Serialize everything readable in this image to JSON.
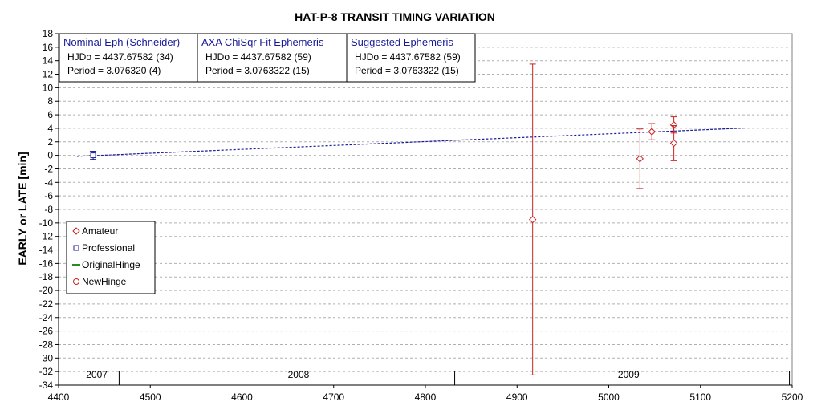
{
  "chart_data": {
    "type": "scatter",
    "title": "HAT-P-8 TRANSIT TIMING VARIATION",
    "xlabel": "",
    "ylabel": "EARLY or LATE [min]",
    "xlim": [
      4400,
      5200
    ],
    "ylim": [
      -34,
      18
    ],
    "x_ticks": [
      "4400",
      "4500",
      "4600",
      "4700",
      "4800",
      "4900",
      "5000",
      "5100",
      "5200"
    ],
    "y_ticks": [
      "18",
      "16",
      "14",
      "12",
      "10",
      "8",
      "6",
      "4",
      "2",
      "0",
      "-2",
      "-4",
      "-6",
      "-8",
      "-10",
      "-12",
      "-14",
      "-16",
      "-18",
      "-20",
      "-22",
      "-24",
      "-26",
      "-28",
      "-30",
      "-32",
      "-34"
    ],
    "grid": "horizontal dashed",
    "legend_placement": "lower-left",
    "years": [
      {
        "label": "2007",
        "x": 4430
      },
      {
        "label": "2008",
        "x": 4650
      },
      {
        "label": "2009",
        "x": 5010
      }
    ],
    "year_dividers": [
      4466,
      4832,
      5197
    ],
    "series": [
      {
        "name": "Amateur",
        "marker": "diamond",
        "color": "#cc2222",
        "points": [
          {
            "x": 4917,
            "y": -9.5,
            "err": 23
          },
          {
            "x": 5034,
            "y": -0.5,
            "err": 4.4
          },
          {
            "x": 5047,
            "y": 3.5,
            "err": 1.2
          },
          {
            "x": 5071,
            "y": 4.5,
            "err": 1.2
          },
          {
            "x": 5071,
            "y": 1.8,
            "err": 2.6
          }
        ]
      },
      {
        "name": "Professional",
        "marker": "square",
        "color": "#1a1a99",
        "points": [
          {
            "x": 4437.7,
            "y": 0,
            "err": 0.6
          }
        ]
      },
      {
        "name": "OriginalHinge",
        "marker": "line",
        "color": "#2a8a2a",
        "points": []
      },
      {
        "name": "NewHinge",
        "marker": "circle",
        "color": "#cc2222",
        "points": []
      }
    ],
    "fit_line": {
      "color": "#1a1a99",
      "x": [
        4420,
        5150
      ],
      "y": [
        -0.15,
        4.05
      ]
    },
    "info_boxes": [
      {
        "heading": "Nominal Eph (Schneider)",
        "line1": "HJDo = 4437.67582 (34)",
        "line2": "Period = 3.076320 (4)"
      },
      {
        "heading": "AXA ChiSqr Fit Ephemeris",
        "line1": "HJDo = 4437.67582 (59)",
        "line2": "Period = 3.0763322 (15)"
      },
      {
        "heading": "Suggested Ephemeris",
        "line1": "HJDo = 4437.67582 (59)",
        "line2": "Period = 3.0763322 (15)"
      }
    ],
    "colors": {
      "amateur": "#cc2222",
      "professional": "#1a1a99",
      "fit": "#1a1a99",
      "grid": "#b0b0b0",
      "hinge_original": "#2a8a2a"
    }
  }
}
